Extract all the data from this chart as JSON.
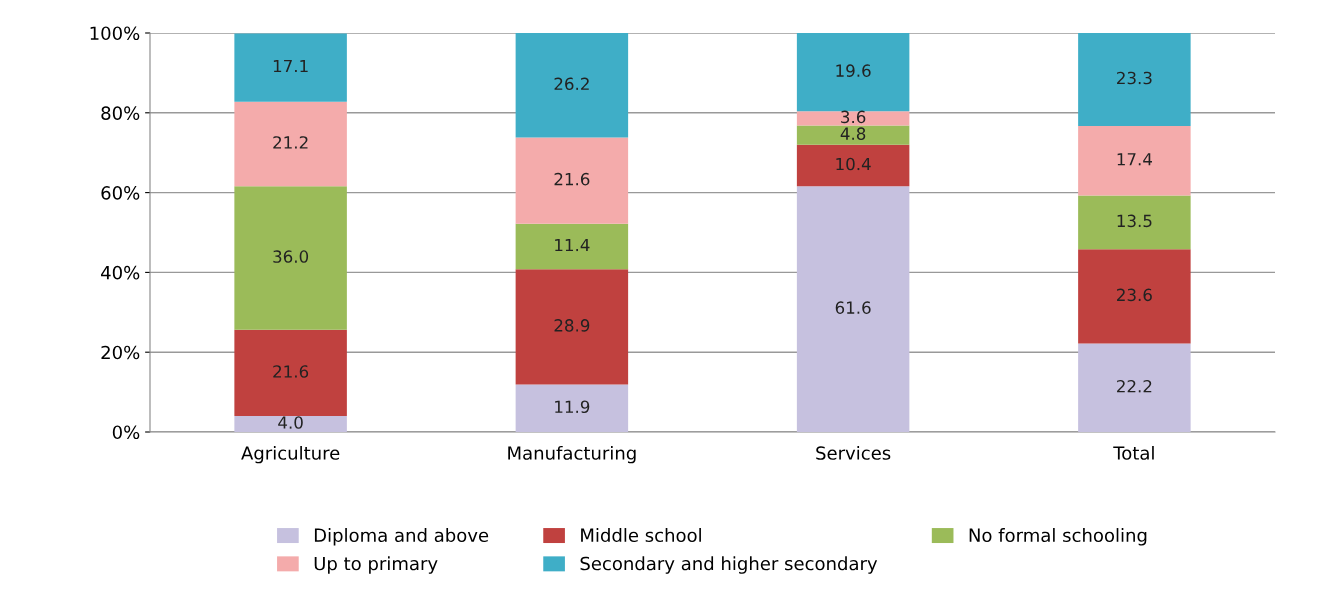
{
  "chart_data": {
    "type": "bar",
    "stacked": true,
    "categories": [
      "Agriculture",
      "Manufacturing",
      "Services",
      "Total"
    ],
    "series": [
      {
        "name": "Diploma and above",
        "color": "#c6c1df",
        "values": [
          4.0,
          11.9,
          61.6,
          22.2
        ],
        "value_labels": [
          "4.0",
          "11.9",
          "61.6",
          "22.2"
        ]
      },
      {
        "name": "Middle school",
        "color": "#c0413f",
        "values": [
          21.6,
          28.9,
          10.4,
          23.6
        ],
        "value_labels": [
          "21.6",
          "28.9",
          "10.4",
          "23.6"
        ]
      },
      {
        "name": "No formal schooling",
        "color": "#9bbb59",
        "values": [
          36.0,
          11.4,
          4.8,
          13.5
        ],
        "value_labels": [
          "36.0",
          "11.4",
          "4.8",
          "13.5"
        ]
      },
      {
        "name": "Up to primary",
        "color": "#f4abab",
        "values": [
          21.2,
          21.6,
          3.6,
          17.4
        ],
        "value_labels": [
          "21.2",
          "21.6",
          "3.6",
          "17.4"
        ]
      },
      {
        "name": "Secondary and higher secondary",
        "color": "#3faec7",
        "values": [
          17.1,
          26.2,
          19.6,
          23.3
        ],
        "value_labels": [
          "17.1",
          "26.2",
          "19.6",
          "23.3"
        ]
      }
    ],
    "ylim": [
      0,
      100
    ],
    "yticks": [
      {
        "value": 0,
        "label": "0%"
      },
      {
        "value": 20,
        "label": "20%"
      },
      {
        "value": 40,
        "label": "40%"
      },
      {
        "value": 60,
        "label": "60%"
      },
      {
        "value": 80,
        "label": "80%"
      },
      {
        "value": 100,
        "label": "100%"
      }
    ],
    "grid": "y",
    "legend": "bottom"
  }
}
